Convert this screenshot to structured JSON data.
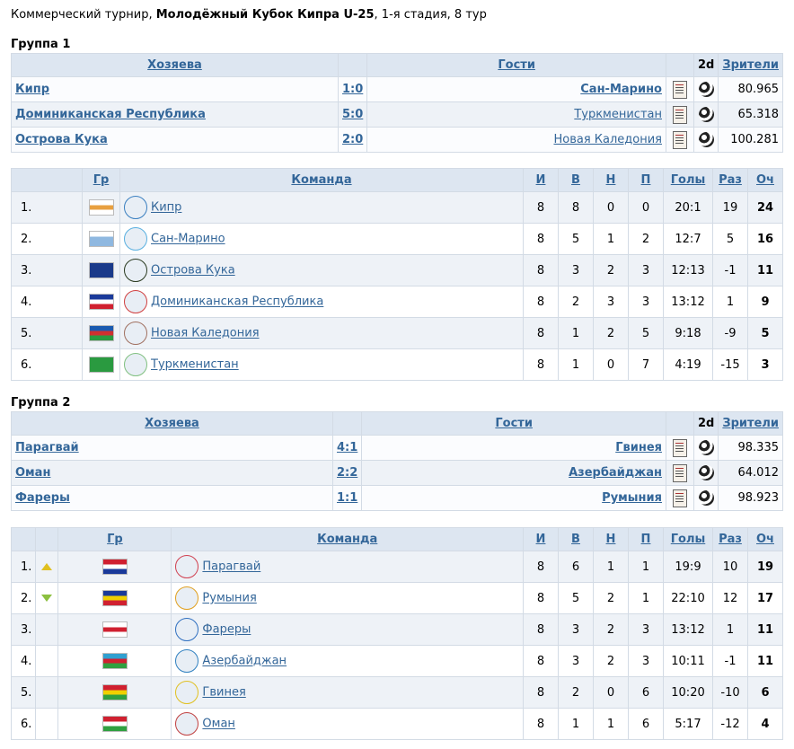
{
  "header": {
    "prefix": "Коммерческий турнир,",
    "tournament": "Молодёжный Кубок Кипра U-25",
    "suffix": ", 1-я стадия, 8 тур"
  },
  "groups": [
    {
      "title": "Группа 1",
      "headers": {
        "home": "Хозяева",
        "guests": "Гости",
        "two_d": "2d",
        "spectators": "Зрители"
      },
      "matches": [
        {
          "home": "Кипр",
          "score": "1:0",
          "guest": "Сан-Марино",
          "guest_bold": true,
          "spectators": "80.965"
        },
        {
          "home": "Доминиканская Республика",
          "score": "5:0",
          "guest": "Туркменистан",
          "guest_bold": false,
          "spectators": "65.318"
        },
        {
          "home": "Острова Кука",
          "score": "2:0",
          "guest": "Новая Каледония",
          "guest_bold": false,
          "spectators": "100.281"
        }
      ],
      "standings_headers": {
        "gr": "Гр",
        "team": "Команда",
        "i": "И",
        "v": "В",
        "n": "Н",
        "p": "П",
        "goals": "Голы",
        "diff": "Раз",
        "pts": "Оч"
      },
      "standings": [
        {
          "pos": "1.",
          "team": "Кипр",
          "i": "8",
          "v": "8",
          "n": "0",
          "p": "0",
          "goals": "20:1",
          "diff": "19",
          "pts": "24",
          "flag": [
            "#ffffff",
            "#e8a040",
            "#ffffff"
          ],
          "emblem": "#3a7fc0"
        },
        {
          "pos": "2.",
          "team": "Сан-Марино",
          "i": "8",
          "v": "5",
          "n": "1",
          "p": "2",
          "goals": "12:7",
          "diff": "5",
          "pts": "16",
          "flag": [
            "#ffffff",
            "#8fb8e0",
            "#8fb8e0"
          ],
          "emblem": "#5ab0e0"
        },
        {
          "pos": "3.",
          "team": "Острова Кука",
          "i": "8",
          "v": "3",
          "n": "2",
          "p": "3",
          "goals": "12:13",
          "diff": "-1",
          "pts": "11",
          "flag": [
            "#1a3a8a",
            "#1a3a8a",
            "#1a3a8a"
          ],
          "emblem": "#2a3a20"
        },
        {
          "pos": "4.",
          "team": "Доминиканская Республика",
          "i": "8",
          "v": "2",
          "n": "3",
          "p": "3",
          "goals": "13:12",
          "diff": "1",
          "pts": "9",
          "flag": [
            "#1a3a9a",
            "#ffffff",
            "#d02030"
          ],
          "emblem": "#d04040"
        },
        {
          "pos": "5.",
          "team": "Новая Каледония",
          "i": "8",
          "v": "1",
          "n": "2",
          "p": "5",
          "goals": "9:18",
          "diff": "-9",
          "pts": "5",
          "flag": [
            "#1a5ab0",
            "#d03030",
            "#2a9a40"
          ],
          "emblem": "#a07060"
        },
        {
          "pos": "6.",
          "team": "Туркменистан",
          "i": "8",
          "v": "1",
          "n": "0",
          "p": "7",
          "goals": "4:19",
          "diff": "-15",
          "pts": "3",
          "flag": [
            "#2a9a40",
            "#2a9a40",
            "#2a9a40"
          ],
          "emblem": "#80c080"
        }
      ]
    },
    {
      "title": "Группа 2",
      "headers": {
        "home": "Хозяева",
        "guests": "Гости",
        "two_d": "2d",
        "spectators": "Зрители"
      },
      "matches": [
        {
          "home": "Парагвай",
          "score": "4:1",
          "guest": "Гвинея",
          "guest_bold": true,
          "spectators": "98.335"
        },
        {
          "home": "Оман",
          "score": "2:2",
          "guest": "Азербайджан",
          "guest_bold": true,
          "spectators": "64.012"
        },
        {
          "home": "Фареры",
          "score": "1:1",
          "guest": "Румыния",
          "guest_bold": true,
          "spectators": "98.923"
        }
      ],
      "standings_headers": {
        "gr": "Гр",
        "team": "Команда",
        "i": "И",
        "v": "В",
        "n": "Н",
        "p": "П",
        "goals": "Голы",
        "diff": "Раз",
        "pts": "Оч"
      },
      "standings": [
        {
          "pos": "1.",
          "arrow": "up",
          "team": "Парагвай",
          "i": "8",
          "v": "6",
          "n": "1",
          "p": "1",
          "goals": "19:9",
          "diff": "10",
          "pts": "19",
          "flag": [
            "#d02030",
            "#ffffff",
            "#1a3a9a"
          ],
          "emblem": "#d04050"
        },
        {
          "pos": "2.",
          "arrow": "down",
          "team": "Румыния",
          "i": "8",
          "v": "5",
          "n": "2",
          "p": "1",
          "goals": "22:10",
          "diff": "12",
          "pts": "17",
          "flag": [
            "#1a3a9a",
            "#f0d000",
            "#d02030"
          ],
          "emblem": "#e0a020"
        },
        {
          "pos": "3.",
          "arrow": "",
          "team": "Фареры",
          "i": "8",
          "v": "3",
          "n": "2",
          "p": "3",
          "goals": "13:12",
          "diff": "1",
          "pts": "11",
          "flag": [
            "#ffffff",
            "#d02030",
            "#ffffff"
          ],
          "emblem": "#3070c0"
        },
        {
          "pos": "4.",
          "arrow": "",
          "team": "Азербайджан",
          "i": "8",
          "v": "3",
          "n": "2",
          "p": "3",
          "goals": "10:11",
          "diff": "-1",
          "pts": "11",
          "flag": [
            "#30a0d0",
            "#d02030",
            "#30a040"
          ],
          "emblem": "#3080c0"
        },
        {
          "pos": "5.",
          "arrow": "",
          "team": "Гвинея",
          "i": "8",
          "v": "2",
          "n": "0",
          "p": "6",
          "goals": "10:20",
          "diff": "-10",
          "pts": "6",
          "flag": [
            "#d02030",
            "#f0d000",
            "#30a040"
          ],
          "emblem": "#e0c020"
        },
        {
          "pos": "6.",
          "arrow": "",
          "team": "Оман",
          "i": "8",
          "v": "1",
          "n": "1",
          "p": "6",
          "goals": "5:17",
          "diff": "-12",
          "pts": "4",
          "flag": [
            "#d02030",
            "#ffffff",
            "#30a040"
          ],
          "emblem": "#c04040"
        }
      ]
    }
  ]
}
